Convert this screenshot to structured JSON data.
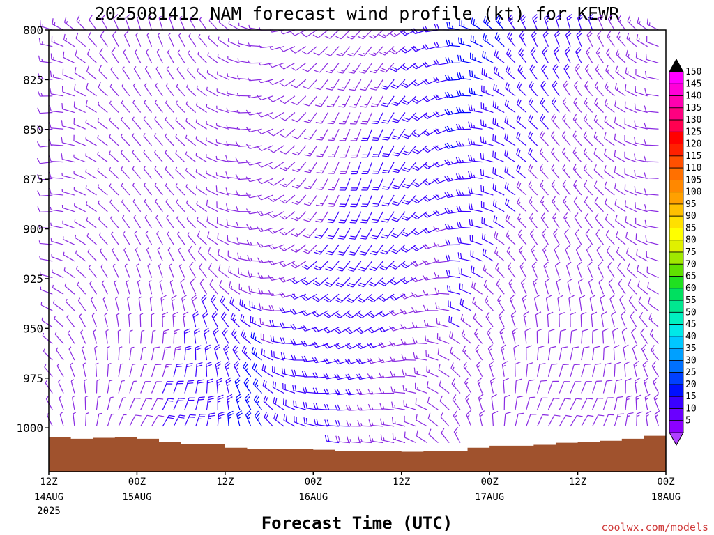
{
  "chart_data": {
    "type": "wind-barb-time-height",
    "title": "2025081412 NAM forecast wind profile (kt) for KEWR",
    "xlabel": "Forecast Time (UTC)",
    "ylabel": "",
    "y_axis": {
      "ticks": [
        "800",
        "825",
        "850",
        "875",
        "900",
        "925",
        "950",
        "975",
        "1000"
      ],
      "ylim": [
        800,
        1022
      ]
    },
    "x_axis": {
      "ticks": [
        {
          "hour": 0,
          "label": "12Z",
          "sub": "14AUG",
          "sub2": "2025"
        },
        {
          "hour": 12,
          "label": "00Z",
          "sub": "15AUG",
          "sub2": ""
        },
        {
          "hour": 24,
          "label": "12Z",
          "sub": "",
          "sub2": ""
        },
        {
          "hour": 36,
          "label": "00Z",
          "sub": "16AUG",
          "sub2": ""
        },
        {
          "hour": 48,
          "label": "12Z",
          "sub": "",
          "sub2": ""
        },
        {
          "hour": 60,
          "label": "00Z",
          "sub": "17AUG",
          "sub2": ""
        },
        {
          "hour": 72,
          "label": "12Z",
          "sub": "",
          "sub2": ""
        },
        {
          "hour": 84,
          "label": "00Z",
          "sub": "18AUG",
          "sub2": ""
        }
      ],
      "xlim": [
        0,
        84
      ]
    },
    "colorbar": {
      "values": [
        5,
        10,
        15,
        20,
        25,
        30,
        35,
        40,
        45,
        50,
        55,
        60,
        65,
        70,
        75,
        80,
        85,
        90,
        95,
        100,
        105,
        110,
        115,
        120,
        125,
        130,
        135,
        140,
        145,
        150
      ],
      "colors": [
        "#8c00ff",
        "#6a00ff",
        "#3a00ff",
        "#0010ff",
        "#0040ff",
        "#0070ff",
        "#00a0ff",
        "#00c8ff",
        "#00e8e8",
        "#00f0c0",
        "#00e890",
        "#00e060",
        "#20e020",
        "#60e000",
        "#a0e800",
        "#e0f000",
        "#ffff00",
        "#ffe000",
        "#ffc000",
        "#ffa000",
        "#ff8800",
        "#ff7000",
        "#ff5000",
        "#ff2000",
        "#ff0000",
        "#ff0050",
        "#ff0080",
        "#ff00b0",
        "#ff00d8",
        "#ff00ff"
      ],
      "extend_top": "#000000",
      "extend_bottom": "#b040ff"
    },
    "surface_pressure": {
      "hours": [
        0,
        3,
        6,
        9,
        12,
        15,
        18,
        21,
        24,
        27,
        30,
        33,
        36,
        39,
        42,
        45,
        48,
        51,
        54,
        57,
        60,
        63,
        66,
        69,
        72,
        75,
        78,
        81,
        84
      ],
      "values": [
        1004.5,
        1005.5,
        1005,
        1004.5,
        1005.5,
        1007,
        1008,
        1008,
        1010,
        1010.5,
        1010.5,
        1010.5,
        1011,
        1011.5,
        1011.5,
        1011.5,
        1012,
        1011.5,
        1011.5,
        1010,
        1009,
        1009,
        1008.5,
        1007.5,
        1007,
        1006.5,
        1005.5,
        1004,
        1003
      ],
      "color": "#a0522d"
    },
    "barb_color": "#8a2be2"
  },
  "credit": "coolwx.com/models"
}
